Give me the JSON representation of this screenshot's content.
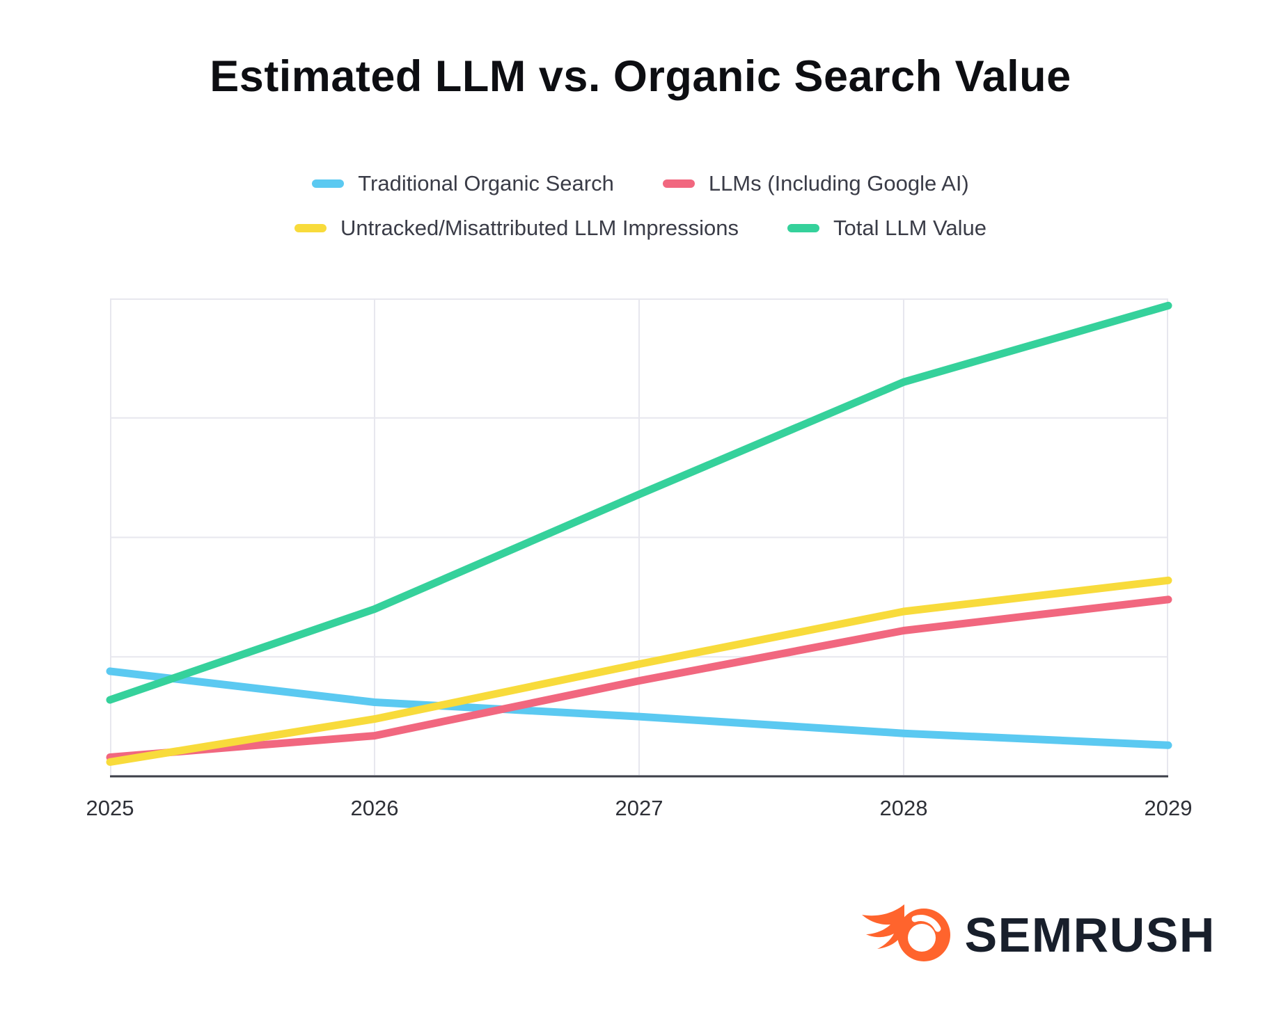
{
  "page": {
    "background": "#FFFFFF"
  },
  "chart_data": {
    "type": "line",
    "title": "Estimated LLM vs. Organic Search Value",
    "x_labels": [
      "2025",
      "2026",
      "2027",
      "2028",
      "2029"
    ],
    "xlabel": "",
    "ylabel": "",
    "y_axis_labels_visible": false,
    "ylim": [
      0,
      100
    ],
    "value_note": "values estimated from pixel positions; no y-axis scale shown in chart",
    "grid": true,
    "legend_position": "top",
    "series": [
      {
        "name": "Traditional Organic Search",
        "color": "#5BC9F1",
        "values": [
          22,
          15.5,
          12.5,
          9,
          6.5
        ]
      },
      {
        "name": "LLMs (Including Google AI)",
        "color": "#F1677F",
        "values": [
          4,
          8.5,
          20,
          30.5,
          37
        ]
      },
      {
        "name": "Untracked/Misattributed LLM Impressions",
        "color": "#F8DB3B",
        "values": [
          3,
          12,
          23.5,
          34.5,
          41
        ]
      },
      {
        "name": "Total LLM Value",
        "color": "#35D19B",
        "values": [
          16,
          35,
          59,
          82.5,
          98.5
        ]
      }
    ]
  },
  "footer": {
    "brand": "SEMRUSH",
    "brand_color": "#FF642D",
    "brand_text_color": "#181F2B"
  }
}
